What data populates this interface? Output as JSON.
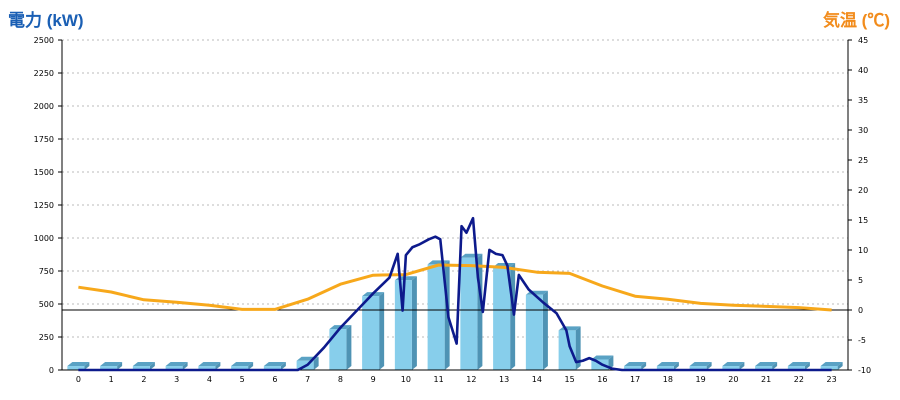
{
  "chart_data": {
    "type": "bar",
    "left_axis_title": "電力 (kW)",
    "right_axis_title": "気温 (℃)",
    "categories": [
      "0",
      "1",
      "2",
      "3",
      "4",
      "5",
      "6",
      "7",
      "8",
      "9",
      "10",
      "11",
      "12",
      "13",
      "14",
      "15",
      "16",
      "17",
      "18",
      "19",
      "20",
      "21",
      "22",
      "23"
    ],
    "left_axis": {
      "min": 0,
      "max": 2500,
      "ticks": [
        0,
        250,
        500,
        750,
        1000,
        1250,
        1500,
        1750,
        2000,
        2250,
        2500
      ]
    },
    "right_axis": {
      "min": -10,
      "max": 45,
      "ticks": [
        -10,
        -5,
        0,
        5,
        10,
        15,
        20,
        25,
        30,
        35,
        40,
        45
      ]
    },
    "grid": true,
    "reference_line_temperature": 0,
    "bar_series": {
      "axis": "left",
      "color": "#87ceeb",
      "values": [
        30,
        30,
        30,
        30,
        30,
        30,
        30,
        70,
        310,
        560,
        680,
        800,
        850,
        780,
        570,
        300,
        80,
        30,
        30,
        30,
        30,
        30,
        30,
        30
      ]
    },
    "power_line_series": {
      "axis": "left",
      "color": "#0d1a8c",
      "points": [
        [
          6.7,
          0
        ],
        [
          7.0,
          40
        ],
        [
          7.5,
          170
        ],
        [
          8.0,
          320
        ],
        [
          8.5,
          450
        ],
        [
          9.0,
          580
        ],
        [
          9.5,
          700
        ],
        [
          9.75,
          880
        ],
        [
          9.9,
          450
        ],
        [
          10.0,
          870
        ],
        [
          10.2,
          930
        ],
        [
          10.4,
          950
        ],
        [
          10.7,
          990
        ],
        [
          10.9,
          1010
        ],
        [
          11.05,
          990
        ],
        [
          11.3,
          400
        ],
        [
          11.55,
          200
        ],
        [
          11.7,
          1090
        ],
        [
          11.85,
          1040
        ],
        [
          12.05,
          1150
        ],
        [
          12.2,
          700
        ],
        [
          12.35,
          440
        ],
        [
          12.55,
          910
        ],
        [
          12.75,
          880
        ],
        [
          12.95,
          870
        ],
        [
          13.1,
          790
        ],
        [
          13.3,
          420
        ],
        [
          13.45,
          720
        ],
        [
          13.75,
          610
        ],
        [
          14.2,
          510
        ],
        [
          14.6,
          430
        ],
        [
          14.9,
          300
        ],
        [
          15.0,
          180
        ],
        [
          15.2,
          60
        ],
        [
          15.4,
          70
        ],
        [
          15.6,
          90
        ],
        [
          15.8,
          70
        ],
        [
          16.0,
          40
        ],
        [
          16.3,
          10
        ],
        [
          16.6,
          0
        ]
      ]
    },
    "temperature_series": {
      "axis": "right",
      "color": "#f7a81b",
      "values": [
        3.8,
        3.0,
        1.7,
        1.3,
        0.8,
        0.1,
        0.1,
        1.8,
        4.3,
        5.8,
        5.9,
        7.5,
        7.4,
        7.1,
        6.3,
        6.1,
        4.0,
        2.3,
        1.8,
        1.1,
        0.8,
        0.6,
        0.4,
        0.0
      ]
    }
  }
}
